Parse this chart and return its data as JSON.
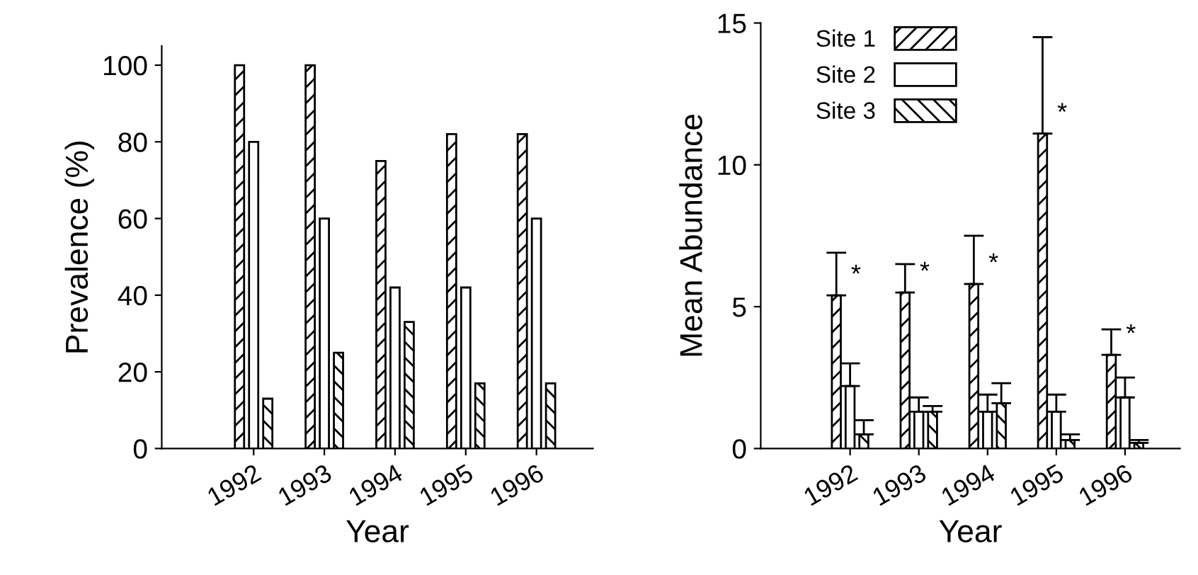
{
  "chart_data": [
    {
      "type": "bar",
      "xlabel": "Year",
      "ylabel": "Prevalence (%)",
      "categories": [
        "1992",
        "1993",
        "1994",
        "1995",
        "1996"
      ],
      "series": [
        {
          "color": "#000000",
          "values": [
            100,
            100,
            75,
            82,
            82
          ]
        },
        {
          "color": "#ffffff",
          "values": [
            80,
            60,
            42,
            42,
            60
          ]
        },
        {
          "color": "#000000",
          "values": [
            13,
            25,
            33,
            17,
            17
          ]
        }
      ],
      "ylim": [
        0,
        105
      ],
      "yticks": [
        0,
        20,
        40,
        60,
        80,
        100
      ],
      "grid": false
    },
    {
      "type": "bar",
      "xlabel": "Year",
      "ylabel": "Mean Abundance",
      "categories": [
        "1992",
        "1993",
        "1994",
        "1995",
        "1996"
      ],
      "series": [
        {
          "name": "Site 1",
          "color": "#000000",
          "values": [
            5.4,
            5.5,
            5.8,
            11.1,
            3.3
          ],
          "errors": [
            [
              5.4,
              6.9
            ],
            [
              5.5,
              6.5
            ],
            [
              5.8,
              7.5
            ],
            [
              11.1,
              14.5
            ],
            [
              3.3,
              4.2
            ]
          ]
        },
        {
          "name": "Site 2",
          "color": "#ffffff",
          "values": [
            2.2,
            1.3,
            1.3,
            1.3,
            1.8
          ],
          "errors": [
            [
              2.2,
              3.0
            ],
            [
              1.3,
              1.8
            ],
            [
              1.3,
              1.9
            ],
            [
              1.3,
              1.9
            ],
            [
              1.8,
              2.5
            ]
          ]
        },
        {
          "name": "Site 3",
          "color": "#000000",
          "values": [
            0.5,
            1.3,
            1.6,
            0.3,
            0.2
          ],
          "errors": [
            [
              0.5,
              1.0
            ],
            [
              1.3,
              1.5
            ],
            [
              1.6,
              2.3
            ],
            [
              0.3,
              0.5
            ],
            [
              0.2,
              0.3
            ]
          ]
        }
      ],
      "annotations": [
        {
          "text": "*",
          "x": "1992",
          "y": 5.4
        },
        {
          "text": "*",
          "x": "1993",
          "y": 5.5
        },
        {
          "text": "*",
          "x": "1994",
          "y": 5.8
        },
        {
          "text": "*",
          "x": "1995",
          "y": 11.1
        },
        {
          "text": "*",
          "x": "1996",
          "y": 3.3
        }
      ],
      "ylim": [
        0,
        15
      ],
      "yticks": [
        0,
        5,
        10,
        15
      ],
      "legend": "top left",
      "grid": false
    }
  ]
}
